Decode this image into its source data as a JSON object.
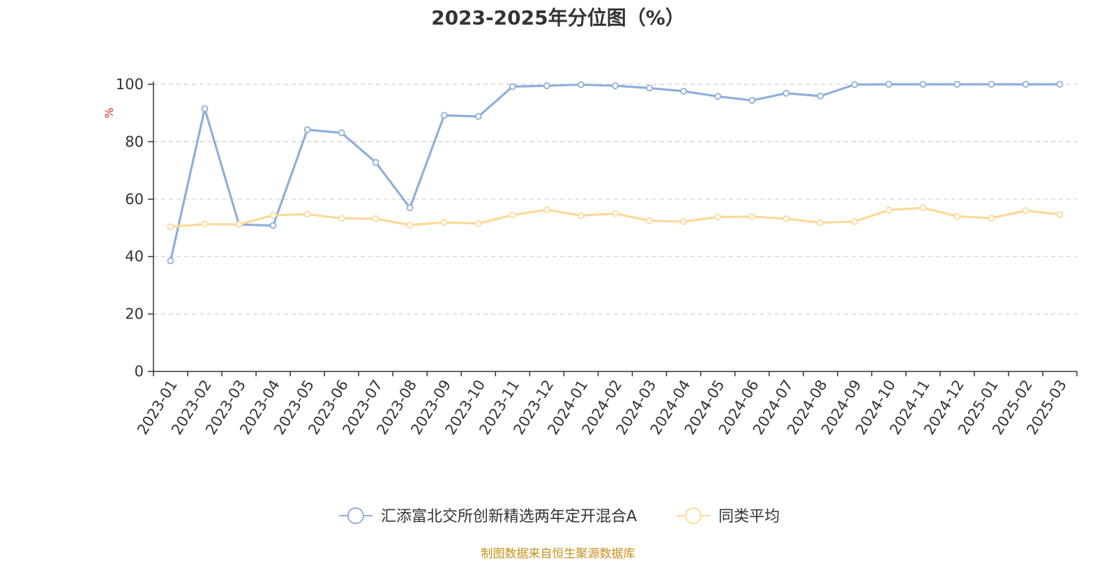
{
  "title": "2023-2025年分位图（%）",
  "source": "制图数据来自恒生聚源数据库",
  "chart_data": {
    "type": "line",
    "title": "2023-2025年分位图（%）",
    "ylabel": "%",
    "xlabel": "",
    "ylim": [
      0,
      100
    ],
    "yticks": [
      0,
      20,
      40,
      60,
      80,
      100
    ],
    "grid": true,
    "legend_position": "bottom",
    "categories": [
      "2023-01",
      "2023-02",
      "2023-03",
      "2023-04",
      "2023-05",
      "2023-06",
      "2023-07",
      "2023-08",
      "2023-09",
      "2023-10",
      "2023-11",
      "2023-12",
      "2024-01",
      "2024-02",
      "2024-03",
      "2024-04",
      "2024-05",
      "2024-06",
      "2024-07",
      "2024-08",
      "2024-09",
      "2024-10",
      "2024-11",
      "2024-12",
      "2025-01",
      "2025-02",
      "2025-03"
    ],
    "series": [
      {
        "name": "汇添富北交所创新精选两年定开混合A",
        "color": "#8eaedb",
        "values": [
          38.5,
          91.5,
          51.2,
          50.8,
          84.2,
          83.1,
          72.8,
          57.0,
          89.2,
          88.8,
          99.2,
          99.5,
          99.9,
          99.5,
          98.7,
          97.6,
          95.8,
          94.4,
          96.9,
          95.9,
          99.9,
          100,
          100,
          100,
          100,
          100,
          100
        ]
      },
      {
        "name": "同类平均",
        "color": "#fbd999",
        "values": [
          50.4,
          51.3,
          51.2,
          54.4,
          54.8,
          53.3,
          53.2,
          51.0,
          51.9,
          51.5,
          54.5,
          56.3,
          54.3,
          55.0,
          52.5,
          52.2,
          53.8,
          53.9,
          53.2,
          51.8,
          52.2,
          56.2,
          57.0,
          54.0,
          53.4,
          56.0,
          54.7
        ]
      }
    ]
  }
}
